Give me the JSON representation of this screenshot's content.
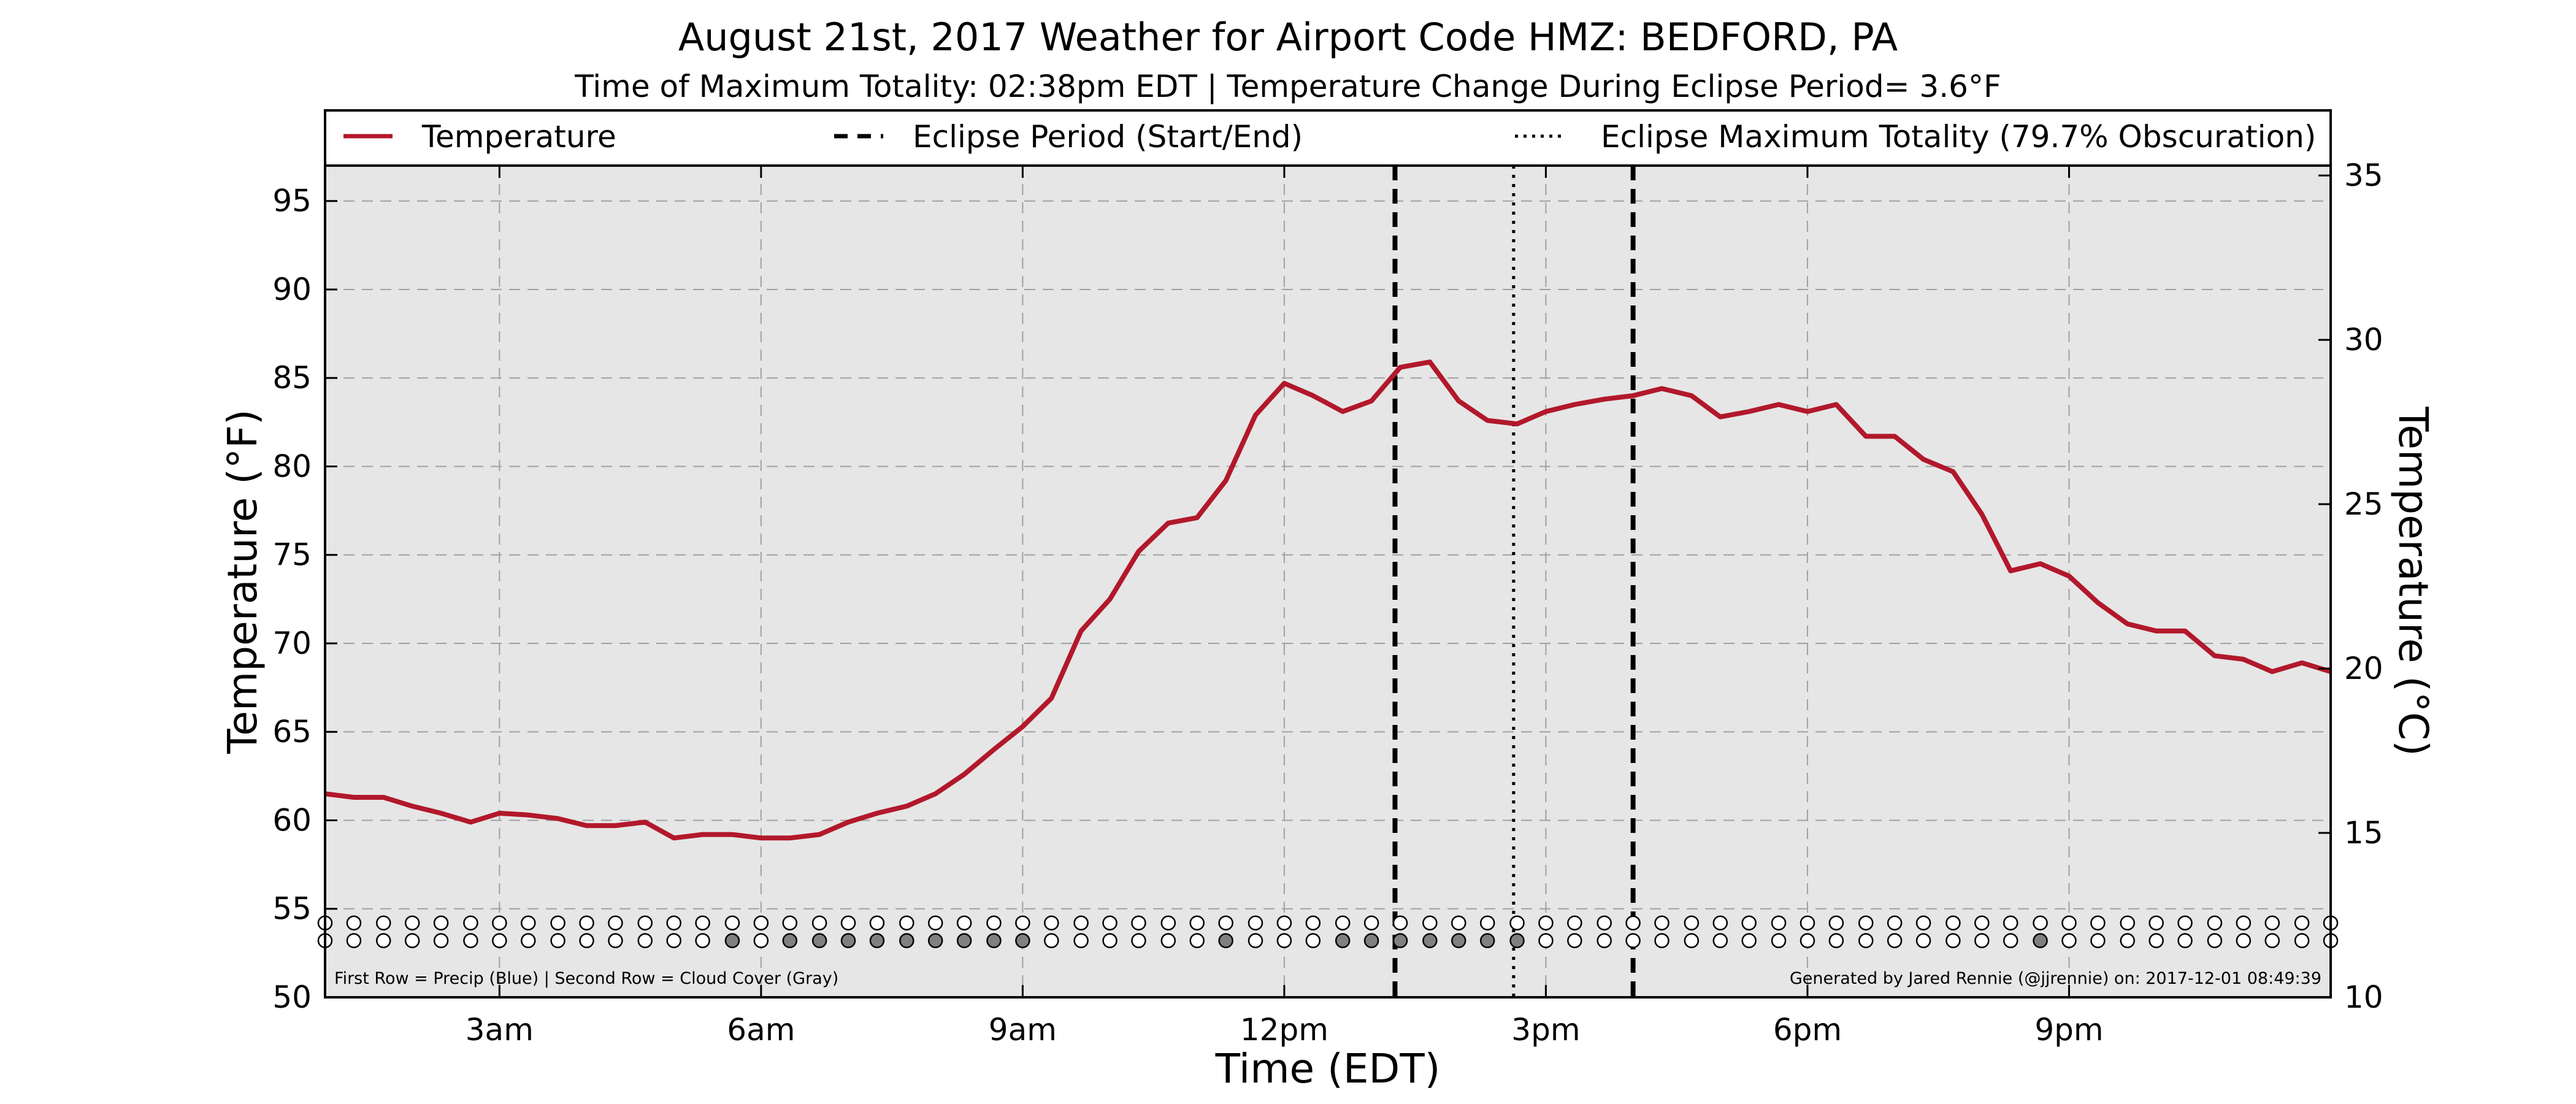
{
  "title": "August 21st, 2017 Weather for Airport Code HMZ: BEDFORD, PA",
  "subtitle": "Time of Maximum Totality: 02:38pm EDT | Temperature Change During Eclipse Period= 3.6°F",
  "legend": {
    "temperature": "Temperature",
    "eclipse_period": "Eclipse Period (Start/End)",
    "eclipse_max": "Eclipse Maximum Totality (79.7% Obscuration)"
  },
  "footnote_left": "First Row = Precip (Blue) | Second Row = Cloud Cover (Gray)",
  "footnote_right": "Generated by Jared Rennie (@jjrennie) on: 2017-12-01 08:49:39",
  "colors": {
    "temperature_line": "#b2182b",
    "plot_background": "#e6e6e6",
    "cloud_fill": "#808080",
    "eclipse_lines": "#000000"
  },
  "chart_data": {
    "type": "line",
    "xlabel": "Time (EDT)",
    "ylabel": "Temperature (°F)",
    "y2label": "Temperature (°C)",
    "xlim": [
      1.0,
      24.0
    ],
    "ylim": [
      50,
      97
    ],
    "y2lim": [
      10,
      35.3
    ],
    "x_ticks": [
      {
        "x": 3,
        "label": "3am"
      },
      {
        "x": 6,
        "label": "6am"
      },
      {
        "x": 9,
        "label": "9am"
      },
      {
        "x": 12,
        "label": "12pm"
      },
      {
        "x": 15,
        "label": "3pm"
      },
      {
        "x": 18,
        "label": "6pm"
      },
      {
        "x": 21,
        "label": "9pm"
      }
    ],
    "y_ticks": [
      50,
      55,
      60,
      65,
      70,
      75,
      80,
      85,
      90,
      95
    ],
    "y2_ticks": [
      10,
      15,
      20,
      25,
      30,
      35
    ],
    "grid": true,
    "legend_position": "top",
    "eclipse_start": 13.27,
    "eclipse_end": 16.0,
    "eclipse_max": 14.63,
    "series": [
      {
        "name": "Temperature",
        "x": [
          1.0,
          1.33,
          1.67,
          2.0,
          2.33,
          2.67,
          3.0,
          3.33,
          3.67,
          4.0,
          4.33,
          4.67,
          5.0,
          5.33,
          5.67,
          6.0,
          6.33,
          6.67,
          7.0,
          7.33,
          7.67,
          8.0,
          8.33,
          8.67,
          9.0,
          9.33,
          9.67,
          10.0,
          10.33,
          10.67,
          11.0,
          11.33,
          11.67,
          12.0,
          12.33,
          12.67,
          13.0,
          13.33,
          13.67,
          14.0,
          14.33,
          14.67,
          15.0,
          15.33,
          15.67,
          16.0,
          16.33,
          16.67,
          17.0,
          17.33,
          17.67,
          18.0,
          18.33,
          18.67,
          19.0,
          19.33,
          19.67,
          20.0,
          20.33,
          20.67,
          21.0,
          21.33,
          21.67,
          22.0,
          22.33,
          22.67,
          23.0,
          23.33,
          23.67,
          24.0
        ],
        "values": [
          61.5,
          61.3,
          61.3,
          60.8,
          60.4,
          59.9,
          60.4,
          60.3,
          60.1,
          59.7,
          59.7,
          59.9,
          59.0,
          59.2,
          59.2,
          59.0,
          59.0,
          59.2,
          59.9,
          60.4,
          60.8,
          61.5,
          62.6,
          64.0,
          65.3,
          66.9,
          70.7,
          72.5,
          75.2,
          76.8,
          77.1,
          79.2,
          82.9,
          84.7,
          84.0,
          83.1,
          83.7,
          85.6,
          85.9,
          83.7,
          82.6,
          82.4,
          83.1,
          83.5,
          83.8,
          84.0,
          84.4,
          84.0,
          82.8,
          83.1,
          83.5,
          83.1,
          83.5,
          81.7,
          81.7,
          80.4,
          79.7,
          77.3,
          74.1,
          74.5,
          73.8,
          72.3,
          71.1,
          70.7,
          70.7,
          69.3,
          69.1,
          68.4,
          68.9,
          68.4
        ]
      }
    ],
    "precip_row": [
      0,
      0,
      0,
      0,
      0,
      0,
      0,
      0,
      0,
      0,
      0,
      0,
      0,
      0,
      0,
      0,
      0,
      0,
      0,
      0,
      0,
      0,
      0,
      0,
      0,
      0,
      0,
      0,
      0,
      0,
      0,
      0,
      0,
      0,
      0,
      0,
      0,
      0,
      0,
      0,
      0,
      0,
      0,
      0,
      0,
      0,
      0,
      0,
      0,
      0,
      0,
      0,
      0,
      0,
      0,
      0,
      0,
      0,
      0,
      0,
      0,
      0,
      0,
      0,
      0,
      0,
      0,
      0,
      0,
      0
    ],
    "cloud_row": [
      0,
      0,
      0,
      0,
      0,
      0,
      0,
      0,
      0,
      0,
      0,
      0,
      0,
      0,
      1,
      0,
      1,
      1,
      1,
      1,
      1,
      1,
      1,
      1,
      1,
      0,
      0,
      0,
      0,
      0,
      0,
      1,
      0,
      0,
      0,
      1,
      1,
      1,
      1,
      1,
      1,
      1,
      0,
      0,
      0,
      0,
      0,
      0,
      0,
      0,
      0,
      0,
      0,
      0,
      0,
      0,
      0,
      0,
      0,
      1,
      0,
      0,
      0,
      0,
      0,
      0,
      0,
      0,
      0,
      0
    ]
  }
}
